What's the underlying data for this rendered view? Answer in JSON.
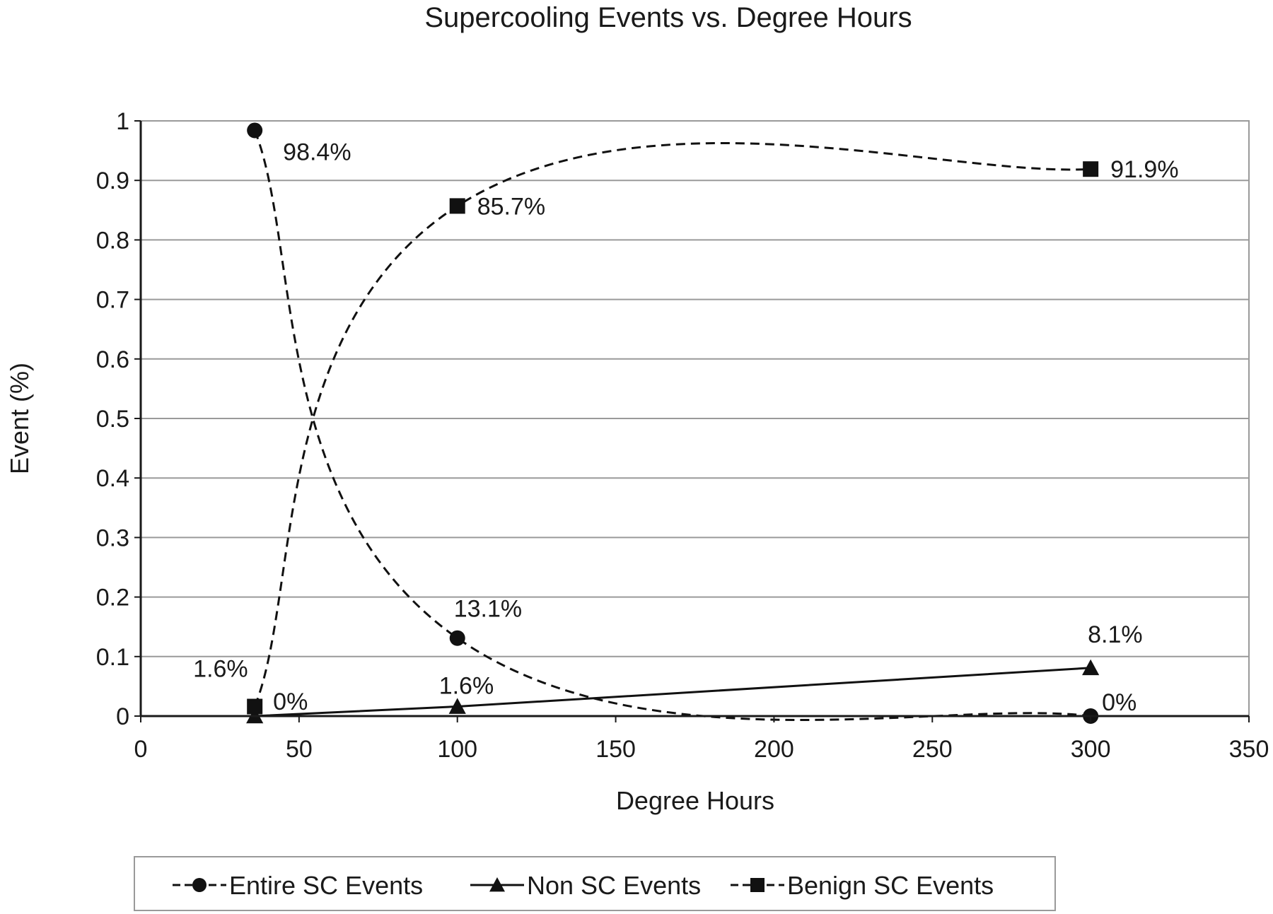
{
  "chart_data": {
    "type": "line",
    "title": "Supercooling Events vs. Degree Hours",
    "xlabel": "Degree Hours",
    "ylabel": "Event (%)",
    "xlim": [
      0,
      350
    ],
    "ylim": [
      0,
      1
    ],
    "xticks": [
      "0",
      "50",
      "100",
      "150",
      "200",
      "250",
      "300",
      "350"
    ],
    "yticks": [
      "0",
      "0.1",
      "0.2",
      "0.3",
      "0.4",
      "0.5",
      "0.6",
      "0.7",
      "0.8",
      "0.9",
      "1"
    ],
    "grid": true,
    "legend_position": "bottom",
    "series": [
      {
        "name": "Entire SC Events",
        "marker": "circle",
        "line_style": "dashed",
        "smooth": true,
        "points": [
          {
            "x": 36,
            "y": 0.984,
            "label": "98.4%"
          },
          {
            "x": 100,
            "y": 0.131,
            "label": "13.1%"
          },
          {
            "x": 300,
            "y": 0.0,
            "label": "0%"
          }
        ]
      },
      {
        "name": "Non SC Events",
        "marker": "triangle",
        "line_style": "solid",
        "smooth": false,
        "points": [
          {
            "x": 36,
            "y": 0.0,
            "label": "0%"
          },
          {
            "x": 100,
            "y": 0.016,
            "label": "1.6%"
          },
          {
            "x": 300,
            "y": 0.081,
            "label": "8.1%"
          }
        ]
      },
      {
        "name": "Benign SC Events",
        "marker": "square",
        "line_style": "dashed",
        "smooth": true,
        "points": [
          {
            "x": 36,
            "y": 0.016,
            "label": "1.6%"
          },
          {
            "x": 100,
            "y": 0.857,
            "label": "85.7%"
          },
          {
            "x": 300,
            "y": 0.919,
            "label": "91.9%"
          }
        ]
      }
    ]
  }
}
